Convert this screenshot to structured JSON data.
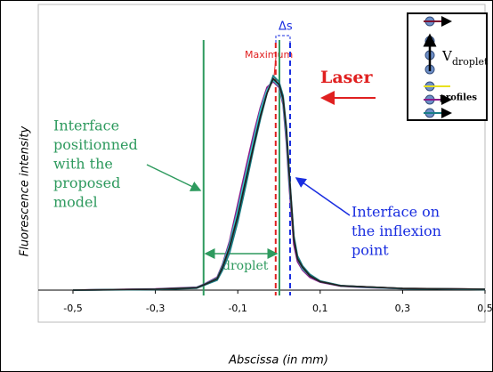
{
  "chart_data": {
    "type": "line",
    "x": [
      -0.5,
      -0.3,
      -0.2,
      -0.18,
      -0.15,
      -0.137,
      -0.12,
      -0.1,
      -0.08,
      -0.061,
      -0.045,
      -0.029,
      -0.014,
      0,
      0.01,
      0.018,
      0.025,
      0.036,
      0.045,
      0.057,
      0.075,
      0.1,
      0.15,
      0.2,
      0.3,
      0.5
    ],
    "series": [
      {
        "color": "#7a1030",
        "values": [
          0,
          0.003,
          0.008,
          0.02,
          0.04,
          0.08,
          0.15,
          0.27,
          0.4,
          0.52,
          0.62,
          0.7,
          0.74,
          0.72,
          0.67,
          0.55,
          0.39,
          0.17,
          0.11,
          0.08,
          0.05,
          0.03,
          0.015,
          0.012,
          0.006,
          0.003
        ]
      },
      {
        "color": "#8a1a8a",
        "values": [
          0,
          0.004,
          0.01,
          0.022,
          0.045,
          0.09,
          0.17,
          0.3,
          0.43,
          0.55,
          0.64,
          0.71,
          0.73,
          0.71,
          0.65,
          0.52,
          0.36,
          0.16,
          0.1,
          0.07,
          0.045,
          0.028,
          0.014,
          0.01,
          0.005,
          0.003
        ]
      },
      {
        "color": "#1a7f86",
        "values": [
          0,
          0.002,
          0.007,
          0.018,
          0.035,
          0.07,
          0.13,
          0.24,
          0.37,
          0.5,
          0.6,
          0.69,
          0.75,
          0.73,
          0.68,
          0.57,
          0.41,
          0.19,
          0.12,
          0.085,
          0.055,
          0.032,
          0.016,
          0.012,
          0.006,
          0.002
        ]
      },
      {
        "color": "#33cccc",
        "values": [
          0,
          0.003,
          0.009,
          0.021,
          0.042,
          0.085,
          0.16,
          0.28,
          0.41,
          0.53,
          0.63,
          0.7,
          0.735,
          0.715,
          0.66,
          0.54,
          0.38,
          0.18,
          0.11,
          0.075,
          0.05,
          0.03,
          0.015,
          0.011,
          0.005,
          0.003
        ]
      },
      {
        "color": "#222222",
        "values": [
          0,
          0.003,
          0.008,
          0.02,
          0.04,
          0.08,
          0.15,
          0.26,
          0.39,
          0.51,
          0.61,
          0.69,
          0.74,
          0.72,
          0.67,
          0.56,
          0.4,
          0.18,
          0.11,
          0.08,
          0.05,
          0.03,
          0.015,
          0.012,
          0.006,
          0.003
        ]
      }
    ],
    "xlim": [
      -0.5,
      0.5
    ],
    "xticks": [
      {
        "value": -0.5,
        "label": "-0,5"
      },
      {
        "value": -0.3,
        "label": "-0,3"
      },
      {
        "value": -0.1,
        "label": "-0,1"
      },
      {
        "value": 0.1,
        "label": "0,1"
      },
      {
        "value": 0.3,
        "label": "0,3"
      },
      {
        "value": 0.5,
        "label": "0,5"
      }
    ],
    "ylim": [
      0,
      1
    ],
    "xlabel": "Abscissa (in mm)",
    "ylabel": "Fluorescence intensity",
    "markers": [
      {
        "x": -0.183,
        "color": "#2e9a5e",
        "style": "solid"
      },
      {
        "x": -0.008,
        "color": "#e02020",
        "style": "dashed"
      },
      {
        "x": 0.001,
        "color": "#2e9a5e",
        "style": "solid"
      },
      {
        "x": 0.027,
        "color": "#1a2ee0",
        "style": "dashed"
      }
    ],
    "annotations": {
      "maximum": "Maximum",
      "delta_s": "Δs",
      "laser": "Laser",
      "interface_model": [
        "Interface",
        "positionned",
        "with the",
        "proposed",
        "model"
      ],
      "interface_inflexion": [
        "Interface on",
        "the inflexion",
        "point"
      ],
      "droplet": "droplet",
      "velocity": "V",
      "velocity_sub": "droplet",
      "profiles": "profiles"
    }
  }
}
